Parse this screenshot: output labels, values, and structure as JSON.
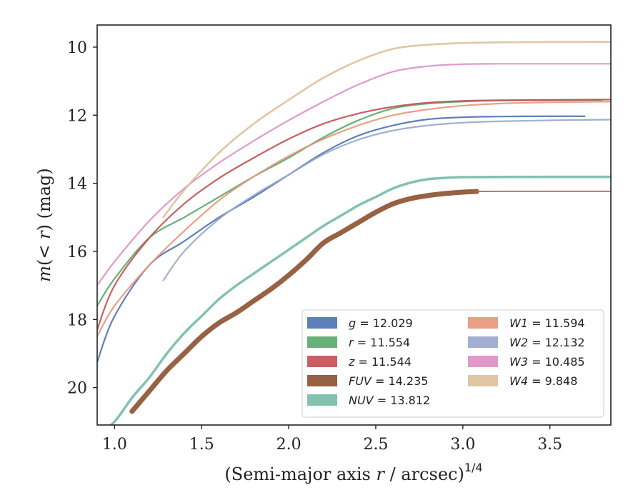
{
  "chart_data": {
    "type": "line",
    "xlabel": "(Semi-major axis r / arcsec)^{1/4}",
    "ylabel": "m(<r) (mag)",
    "xlim": [
      0.9,
      3.85
    ],
    "ylim": [
      21.1,
      9.35
    ],
    "y_inverted": true,
    "grid": false,
    "legend_position": "lower-right",
    "x_ticks": [
      "1.0",
      "1.5",
      "2.0",
      "2.5",
      "3.0",
      "3.5"
    ],
    "y_ticks": [
      "10",
      "12",
      "14",
      "16",
      "18",
      "20"
    ],
    "x_tick_values": [
      1.0,
      1.5,
      2.0,
      2.5,
      3.0,
      3.5
    ],
    "y_tick_values": [
      10,
      12,
      14,
      16,
      18,
      20
    ],
    "series": [
      {
        "name": "g = 12.029",
        "label_var": "g",
        "label_val": "12.029",
        "color": "#4c72b0",
        "width": 2.2,
        "x": [
          0.9,
          1.0,
          1.2,
          1.4,
          1.6,
          1.8,
          2.0,
          2.2,
          2.4,
          2.6,
          2.8,
          3.0,
          3.2,
          3.5,
          3.7
        ],
        "y": [
          19.25,
          17.9,
          16.4,
          15.7,
          15.0,
          14.4,
          13.75,
          13.1,
          12.6,
          12.3,
          12.12,
          12.06,
          12.04,
          12.03,
          12.03
        ]
      },
      {
        "name": "r = 11.554",
        "label_var": "r",
        "label_val": "11.554",
        "color": "#55a868",
        "width": 2.2,
        "x": [
          0.9,
          1.0,
          1.2,
          1.4,
          1.6,
          1.8,
          2.0,
          2.2,
          2.4,
          2.6,
          2.8,
          3.0,
          3.2,
          3.5,
          3.8
        ],
        "y": [
          17.6,
          16.8,
          15.6,
          15.0,
          14.4,
          13.8,
          13.25,
          12.65,
          12.15,
          11.8,
          11.66,
          11.6,
          11.57,
          11.56,
          11.55
        ]
      },
      {
        "name": "z = 11.544",
        "label_var": "z",
        "label_val": "11.544",
        "color": "#c44e52",
        "width": 2.2,
        "x": [
          0.9,
          1.0,
          1.2,
          1.4,
          1.6,
          1.8,
          2.0,
          2.2,
          2.4,
          2.6,
          2.8,
          3.0,
          3.2,
          3.5,
          3.85
        ],
        "y": [
          18.3,
          17.0,
          15.6,
          14.6,
          13.85,
          13.25,
          12.7,
          12.25,
          11.95,
          11.75,
          11.63,
          11.58,
          11.56,
          11.55,
          11.54
        ]
      },
      {
        "name": "FUV = 14.235",
        "label_var": "FUV",
        "label_val": "14.235",
        "color": "#8c5030",
        "width": 7,
        "x": [
          1.1,
          1.2,
          1.3,
          1.4,
          1.5,
          1.6,
          1.7,
          1.8,
          1.9,
          2.0,
          2.1,
          2.2,
          2.3,
          2.4,
          2.5,
          2.6,
          2.7,
          2.8,
          2.9,
          3.0,
          3.08
        ],
        "y": [
          20.7,
          20.1,
          19.5,
          19.0,
          18.5,
          18.1,
          17.8,
          17.45,
          17.1,
          16.7,
          16.25,
          15.75,
          15.45,
          15.15,
          14.85,
          14.6,
          14.45,
          14.36,
          14.3,
          14.26,
          14.24
        ]
      },
      {
        "name": "FUV extension",
        "label_var": "",
        "label_val": "",
        "color": "#a97058",
        "width": 2,
        "x": [
          3.08,
          3.3,
          3.6,
          3.85
        ],
        "y": [
          14.24,
          14.236,
          14.235,
          14.235
        ]
      },
      {
        "name": "NUV = 13.812",
        "label_var": "NUV",
        "label_val": "13.812",
        "color": "#74bba5",
        "width": 3.5,
        "x": [
          0.9,
          1.0,
          1.1,
          1.2,
          1.3,
          1.4,
          1.5,
          1.6,
          1.7,
          1.8,
          1.9,
          2.0,
          2.1,
          2.2,
          2.3,
          2.4,
          2.5,
          2.6,
          2.7,
          2.8,
          2.9,
          3.0,
          3.2,
          3.5,
          3.85
        ],
        "y": [
          21.4,
          21.0,
          20.3,
          19.7,
          19.0,
          18.4,
          17.9,
          17.4,
          17.0,
          16.65,
          16.3,
          15.95,
          15.6,
          15.25,
          14.95,
          14.65,
          14.4,
          14.15,
          13.98,
          13.88,
          13.84,
          13.82,
          13.815,
          13.812,
          13.812
        ]
      },
      {
        "name": "W1 = 11.594",
        "label_var": "W1",
        "label_val": "11.594",
        "color": "#e8957a",
        "width": 2.2,
        "x": [
          0.9,
          1.0,
          1.2,
          1.4,
          1.6,
          1.8,
          2.0,
          2.2,
          2.4,
          2.6,
          2.8,
          3.0,
          3.2,
          3.5,
          3.85
        ],
        "y": [
          18.5,
          17.6,
          16.4,
          15.4,
          14.5,
          13.8,
          13.2,
          12.7,
          12.3,
          12.0,
          11.83,
          11.72,
          11.66,
          11.62,
          11.6
        ]
      },
      {
        "name": "W2 = 12.132",
        "label_var": "W2",
        "label_val": "12.132",
        "color": "#97a7cc",
        "width": 2.2,
        "x": [
          1.28,
          1.4,
          1.6,
          1.8,
          2.0,
          2.2,
          2.4,
          2.6,
          2.8,
          3.0,
          3.2,
          3.5,
          3.85
        ],
        "y": [
          16.85,
          16.0,
          15.05,
          14.35,
          13.75,
          13.15,
          12.72,
          12.45,
          12.3,
          12.22,
          12.18,
          12.15,
          12.13
        ]
      },
      {
        "name": "W3 = 10.485",
        "label_var": "W3",
        "label_val": "10.485",
        "color": "#dd8fc3",
        "width": 2.2,
        "x": [
          0.9,
          1.0,
          1.2,
          1.4,
          1.6,
          1.8,
          2.0,
          2.2,
          2.4,
          2.6,
          2.8,
          3.0,
          3.2,
          3.5,
          3.85
        ],
        "y": [
          17.0,
          16.3,
          15.1,
          14.15,
          13.4,
          12.75,
          12.15,
          11.6,
          11.1,
          10.72,
          10.56,
          10.5,
          10.49,
          10.49,
          10.49
        ]
      },
      {
        "name": "W4 = 9.848",
        "label_var": "W4",
        "label_val": "9.848",
        "color": "#dbc09a",
        "width": 2.6,
        "x": [
          1.28,
          1.4,
          1.6,
          1.8,
          2.0,
          2.2,
          2.4,
          2.6,
          2.8,
          3.0,
          3.2,
          3.5,
          3.85
        ],
        "y": [
          15.0,
          14.2,
          13.1,
          12.25,
          11.55,
          10.9,
          10.4,
          10.05,
          9.93,
          9.88,
          9.86,
          9.85,
          9.848
        ]
      }
    ],
    "legend": [
      {
        "var": "g",
        "val": "12.029",
        "color": "#4c72b0"
      },
      {
        "var": "r",
        "val": "11.554",
        "color": "#55a868"
      },
      {
        "var": "z",
        "val": "11.544",
        "color": "#c44e52"
      },
      {
        "var": "FUV",
        "val": "14.235",
        "color": "#8c5030"
      },
      {
        "var": "NUV",
        "val": "13.812",
        "color": "#74bba5"
      },
      {
        "var": "W1",
        "val": "11.594",
        "color": "#e8957a"
      },
      {
        "var": "W2",
        "val": "12.132",
        "color": "#97a7cc"
      },
      {
        "var": "W3",
        "val": "10.485",
        "color": "#dd8fc3"
      },
      {
        "var": "W4",
        "val": "9.848",
        "color": "#dbc09a"
      }
    ]
  }
}
